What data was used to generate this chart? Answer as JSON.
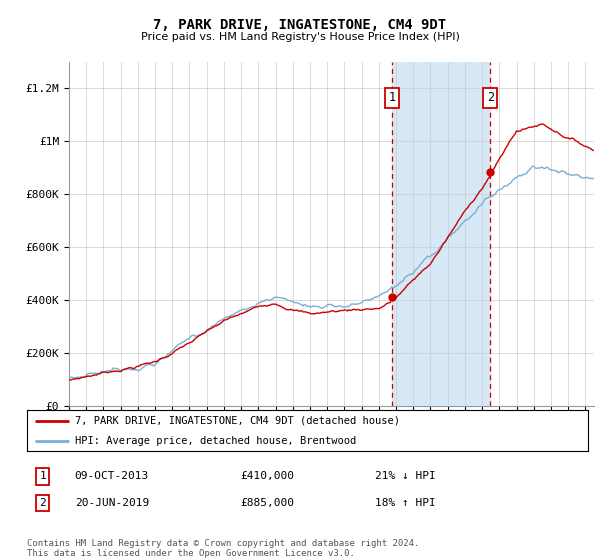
{
  "title": "7, PARK DRIVE, INGATESTONE, CM4 9DT",
  "subtitle": "Price paid vs. HM Land Registry's House Price Index (HPI)",
  "ylabel_ticks": [
    "£0",
    "£200K",
    "£400K",
    "£600K",
    "£800K",
    "£1M",
    "£1.2M"
  ],
  "ytick_values": [
    0,
    200000,
    400000,
    600000,
    800000,
    1000000,
    1200000
  ],
  "ylim": [
    0,
    1300000
  ],
  "xlim_start": 1995.0,
  "xlim_end": 2025.5,
  "sale1_date": 2013.77,
  "sale1_price": 410000,
  "sale2_date": 2019.47,
  "sale2_price": 885000,
  "legend_line1": "7, PARK DRIVE, INGATESTONE, CM4 9DT (detached house)",
  "legend_line2": "HPI: Average price, detached house, Brentwood",
  "footnote": "Contains HM Land Registry data © Crown copyright and database right 2024.\nThis data is licensed under the Open Government Licence v3.0.",
  "table_row1": [
    "1",
    "09-OCT-2013",
    "£410,000",
    "21% ↓ HPI"
  ],
  "table_row2": [
    "2",
    "20-JUN-2019",
    "£885,000",
    "18% ↑ HPI"
  ],
  "hpi_color": "#7BAFD4",
  "price_color": "#CC0000",
  "shade_color": "#D6E8F5",
  "bg_color": "#FFFFFF",
  "grid_color": "#CCCCCC"
}
